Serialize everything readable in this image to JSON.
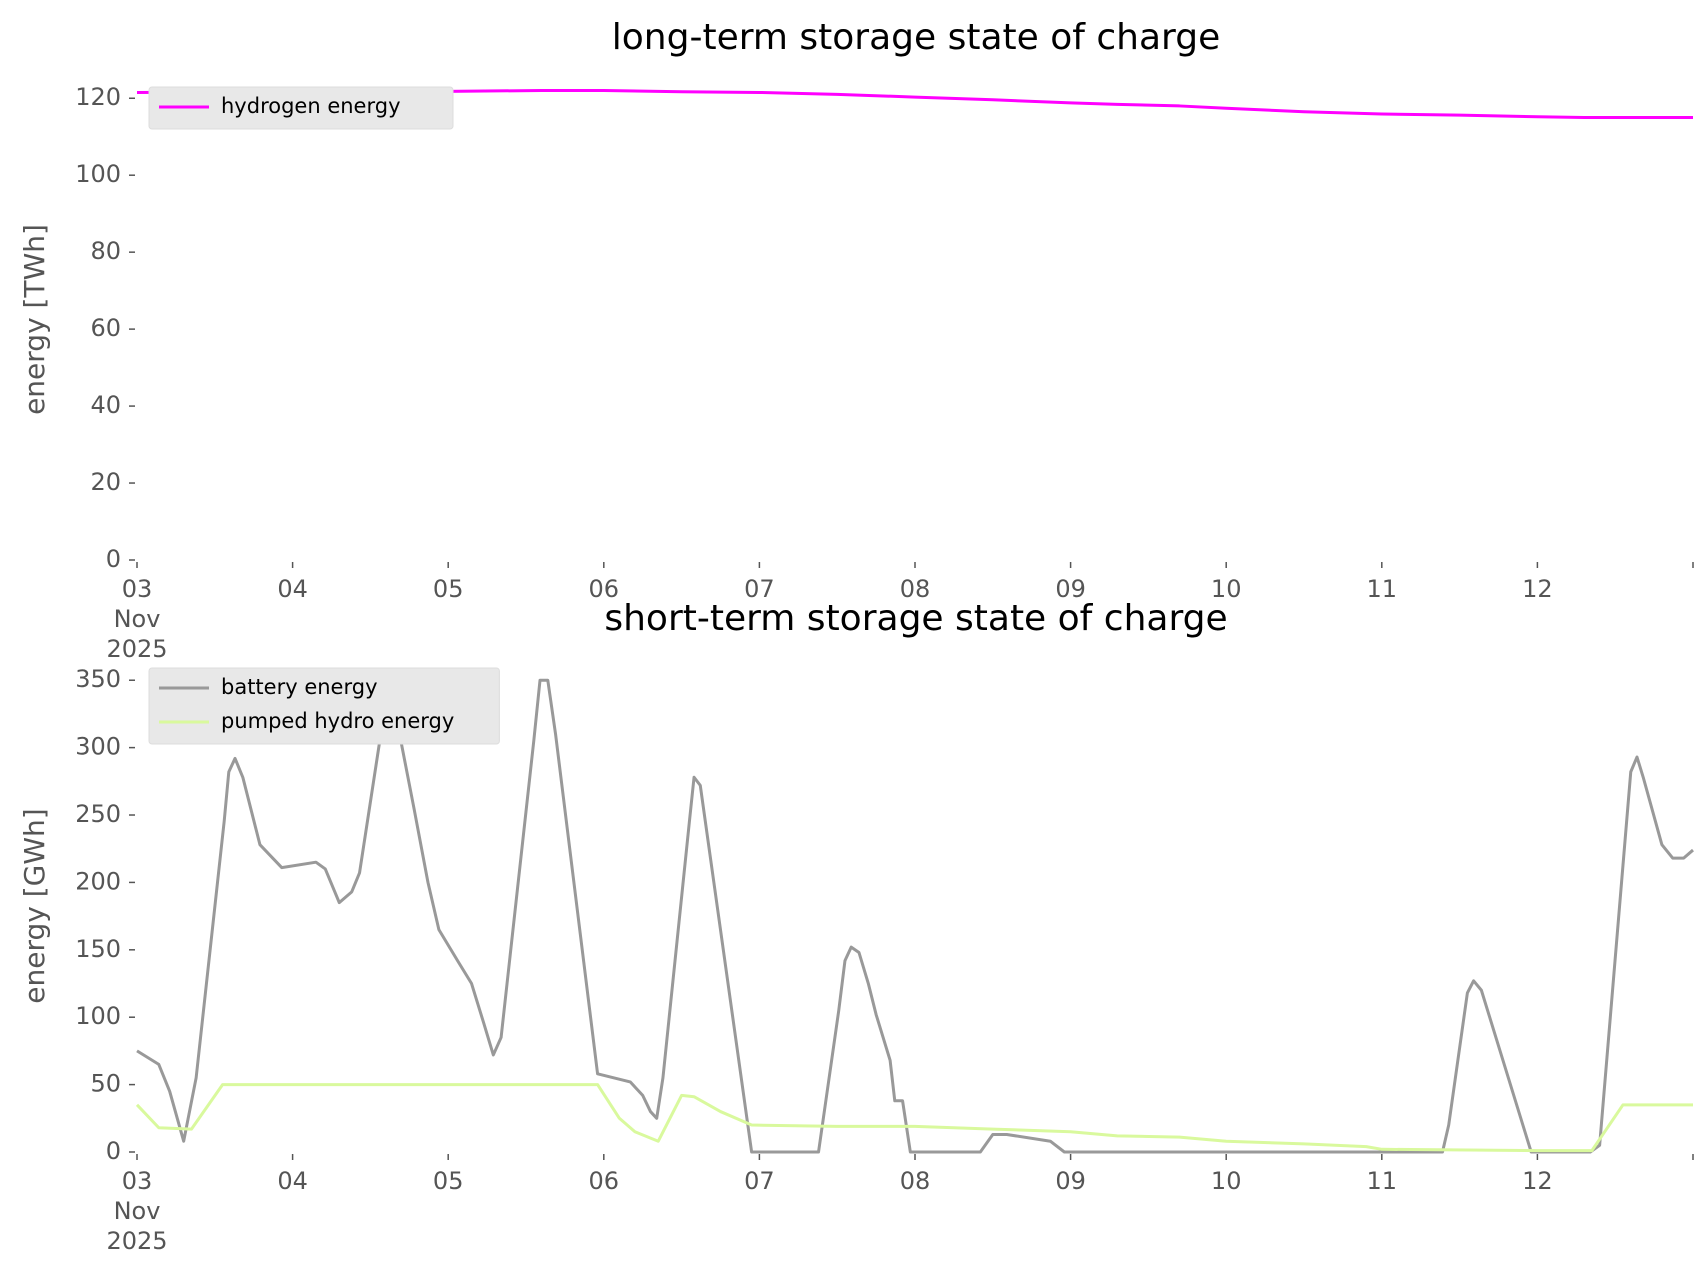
{
  "chart_data": [
    {
      "type": "line",
      "title": "long-term storage state of charge",
      "ylabel": "energy [TWh]",
      "xlim": [
        3,
        13
      ],
      "ylim": [
        0,
        125
      ],
      "xticks": [
        {
          "value": 3,
          "label": "03\nNov\n2025"
        },
        {
          "value": 4,
          "label": "04"
        },
        {
          "value": 5,
          "label": "05"
        },
        {
          "value": 6,
          "label": "06"
        },
        {
          "value": 7,
          "label": "07"
        },
        {
          "value": 8,
          "label": "08"
        },
        {
          "value": 9,
          "label": "09"
        },
        {
          "value": 10,
          "label": "10"
        },
        {
          "value": 11,
          "label": "11"
        },
        {
          "value": 12,
          "label": "12"
        },
        {
          "value": 13,
          "label": ""
        }
      ],
      "yticks": [
        0,
        20,
        40,
        60,
        80,
        100,
        120
      ],
      "legend": "upper left",
      "series": [
        {
          "name": "hydrogen energy",
          "color": "#ff00ff",
          "x": [
            3,
            4,
            5,
            5.6,
            6,
            6.5,
            7,
            7.5,
            8,
            8.5,
            9,
            9.3,
            9.7,
            10,
            10.5,
            11,
            11.5,
            12,
            12.3,
            13
          ],
          "values": [
            121.5,
            121.7,
            121.8,
            122,
            122,
            121.7,
            121.5,
            121,
            120.3,
            119.6,
            118.8,
            118.4,
            118,
            117.4,
            116.5,
            115.9,
            115.6,
            115.2,
            115,
            115
          ]
        }
      ]
    },
    {
      "type": "line",
      "title": "short-term storage state of charge",
      "ylabel": "energy [GWh]",
      "xlim": [
        3,
        13
      ],
      "ylim": [
        0,
        365
      ],
      "xticks": [
        {
          "value": 3,
          "label": "03\nNov\n2025"
        },
        {
          "value": 4,
          "label": "04"
        },
        {
          "value": 5,
          "label": "05"
        },
        {
          "value": 6,
          "label": "06"
        },
        {
          "value": 7,
          "label": "07"
        },
        {
          "value": 8,
          "label": "08"
        },
        {
          "value": 9,
          "label": "09"
        },
        {
          "value": 10,
          "label": "10"
        },
        {
          "value": 11,
          "label": "11"
        },
        {
          "value": 12,
          "label": "12"
        },
        {
          "value": 13,
          "label": ""
        }
      ],
      "yticks": [
        0,
        50,
        100,
        150,
        200,
        250,
        300,
        350
      ],
      "legend": "upper left",
      "series": [
        {
          "name": "battery energy",
          "color": "#999999",
          "x": [
            3,
            3.14,
            3.21,
            3.3,
            3.38,
            3.56,
            3.59,
            3.63,
            3.68,
            3.79,
            3.93,
            4.15,
            4.21,
            4.3,
            4.38,
            4.43,
            4.62,
            4.78,
            4.87,
            4.94,
            5.06,
            5.15,
            5.23,
            5.29,
            5.34,
            5.55,
            5.59,
            5.64,
            5.69,
            5.96,
            6.17,
            6.25,
            6.3,
            6.34,
            6.38,
            6.55,
            6.58,
            6.62,
            6.95,
            7.38,
            7.51,
            7.55,
            7.59,
            7.64,
            7.7,
            7.75,
            7.84,
            7.87,
            7.92,
            7.97,
            8.42,
            8.5,
            8.59,
            8.87,
            8.96,
            11.39,
            11.43,
            11.55,
            11.59,
            11.64,
            11.96,
            12.34,
            12.4,
            12.6,
            12.64,
            12.68,
            12.8,
            12.87,
            12.94,
            13
          ],
          "values": [
            75,
            65,
            45,
            8,
            55,
            245,
            282,
            292,
            278,
            228,
            211,
            215,
            210,
            185,
            193,
            207,
            350,
            255,
            200,
            165,
            142,
            125,
            95,
            72,
            85,
            305,
            350,
            350,
            310,
            58,
            52,
            42,
            30,
            25,
            55,
            245,
            278,
            272,
            0,
            0,
            105,
            142,
            152,
            148,
            125,
            102,
            68,
            38,
            38,
            0,
            0,
            13,
            13,
            8,
            0,
            0,
            20,
            118,
            127,
            120,
            0,
            0,
            5,
            282,
            293,
            278,
            228,
            218,
            218,
            224
          ]
        },
        {
          "name": "pumped hydro energy",
          "color": "#d9f99d",
          "x": [
            3,
            3.14,
            3.35,
            3.55,
            5.96,
            6.1,
            6.2,
            6.35,
            6.5,
            6.58,
            6.75,
            6.95,
            7.5,
            8,
            8.5,
            9,
            9.3,
            9.7,
            10,
            10.5,
            10.9,
            11,
            12,
            12.35,
            12.55,
            13
          ],
          "values": [
            35,
            18,
            17,
            50,
            50,
            25,
            15,
            8,
            42,
            41,
            30,
            20,
            19,
            19,
            17,
            15,
            12,
            11,
            8,
            6,
            4,
            2,
            1,
            1,
            35,
            35
          ]
        }
      ]
    }
  ]
}
